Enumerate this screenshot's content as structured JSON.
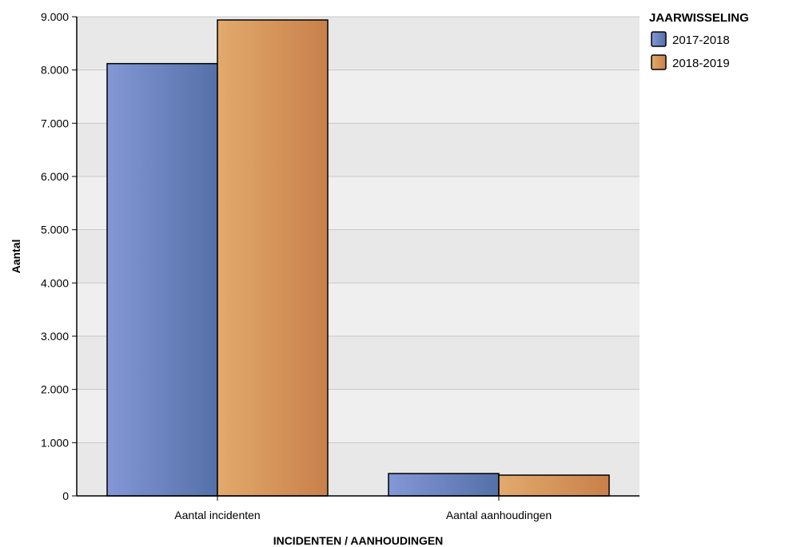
{
  "chart_data": {
    "type": "bar",
    "categories": [
      "Aantal incidenten",
      "Aantal aanhoudingen"
    ],
    "series": [
      {
        "name": "2017-2018",
        "values": [
          8120,
          420
        ],
        "color": "#6a82c2",
        "color_light": "#8497d6",
        "color_dark": "#5470a8"
      },
      {
        "name": "2018-2019",
        "values": [
          8940,
          390
        ],
        "color": "#d69a5c",
        "color_light": "#e2aa6c",
        "color_dark": "#c8804a"
      }
    ],
    "xlabel": "INCIDENTEN / AANHOUDINGEN",
    "ylabel": "Aantal",
    "ylim": [
      0,
      9000
    ],
    "yticks": [
      0,
      1000,
      2000,
      3000,
      4000,
      5000,
      6000,
      7000,
      8000,
      9000
    ],
    "ytick_labels": [
      "0",
      "1.000",
      "2.000",
      "3.000",
      "4.000",
      "5.000",
      "6.000",
      "7.000",
      "8.000",
      "9.000"
    ],
    "legend_title": "JAARWISSELING",
    "legend_position": "top-right",
    "grid": true,
    "plot_background": [
      "#e8e8e8",
      "#efefef"
    ]
  }
}
